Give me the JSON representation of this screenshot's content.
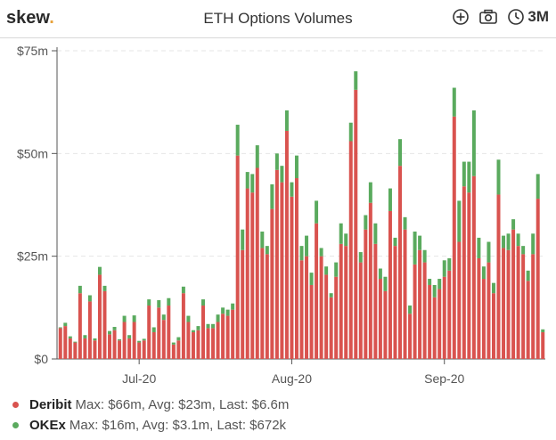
{
  "header": {
    "logo": "skew",
    "logo_dot": ".",
    "title": "ETH Options Volumes",
    "range_label": "3M",
    "icons": [
      "plus-circle-icon",
      "camera-icon",
      "clock-icon"
    ]
  },
  "colors": {
    "deribit": "#d9534f",
    "okex": "#5aaa5e",
    "grid": "#e6e6e6",
    "axis": "#555555"
  },
  "chart_data": {
    "type": "bar",
    "stacked": true,
    "y_ticks": [
      "$0",
      "$25m",
      "$50m",
      "$75m"
    ],
    "y_tick_values": [
      0,
      25,
      50,
      75
    ],
    "ylim": [
      0,
      75
    ],
    "x_tick_labels": [
      {
        "label": "Jul-20",
        "day_index": 16
      },
      {
        "label": "Aug-20",
        "day_index": 47
      },
      {
        "label": "Sep-20",
        "day_index": 78
      }
    ],
    "grid": "horizontal dashed",
    "series": [
      {
        "name": "Deribit",
        "color": "#d9534f",
        "values": [
          7.5,
          8,
          5,
          4,
          16,
          5,
          14,
          4.5,
          20.5,
          16.5,
          6,
          7,
          4.5,
          9,
          5,
          9,
          4,
          4.5,
          13,
          6.5,
          12.5,
          9.5,
          13,
          3.5,
          4.5,
          16,
          9,
          6.5,
          7,
          13,
          7.5,
          7.5,
          9,
          11,
          10.5,
          12,
          49.5,
          26.5,
          41.5,
          40.5,
          46.5,
          27,
          25.5,
          36.5,
          46,
          43,
          55.5,
          39.5,
          44,
          24,
          25,
          18,
          33,
          25,
          20.5,
          15,
          20,
          28,
          27.5,
          53,
          65.5,
          23.5,
          31.5,
          38,
          28,
          19.5,
          16.5,
          36,
          27.5,
          47,
          31.5,
          11,
          23,
          26.5,
          23.5,
          18,
          15,
          17,
          20,
          21.5,
          59,
          28.5,
          42,
          40.5,
          44.5,
          24.5,
          19.5,
          23.5,
          16,
          40,
          27,
          26.5,
          31.5,
          27.5,
          25.5,
          19,
          25.5,
          39,
          6.5
        ],
        "last": "Deribit Max: $66m, Avg: $23m, Last: $6.6m"
      },
      {
        "name": "OKEx",
        "color": "#5aaa5e",
        "values": [
          0.2,
          0.8,
          0.5,
          0.2,
          1.8,
          0.8,
          1.5,
          0.5,
          1.9,
          1.3,
          0.8,
          0.8,
          0.3,
          1.5,
          0.8,
          1.6,
          0.4,
          0.4,
          1.5,
          1.2,
          1.8,
          1.3,
          1.8,
          0.5,
          0.8,
          1.6,
          1.5,
          0.5,
          1,
          1.5,
          1,
          1,
          1.8,
          1.5,
          1.5,
          1.5,
          7.5,
          5,
          4,
          4.5,
          5.5,
          4,
          2,
          6,
          4,
          4,
          5,
          3.5,
          5.5,
          3.5,
          5,
          3,
          5.5,
          2,
          2,
          1,
          3.5,
          5,
          3,
          4.5,
          4.5,
          2.5,
          3.5,
          5,
          5,
          2.5,
          3.5,
          5.5,
          2,
          6.5,
          3,
          2,
          8,
          3.5,
          3,
          1.5,
          3,
          2.5,
          4,
          3,
          7,
          10,
          6,
          7.5,
          16,
          5,
          3,
          5,
          2.5,
          8.5,
          3,
          4,
          2.5,
          3,
          2,
          2.5,
          5,
          6,
          0.7
        ]
      }
    ],
    "legend": [
      {
        "name": "Deribit",
        "text": "Max: $66m, Avg: $23m, Last: $6.6m"
      },
      {
        "name": "OKEx",
        "text": "Max: $16m, Avg: $3.1m, Last: $672k"
      }
    ]
  }
}
